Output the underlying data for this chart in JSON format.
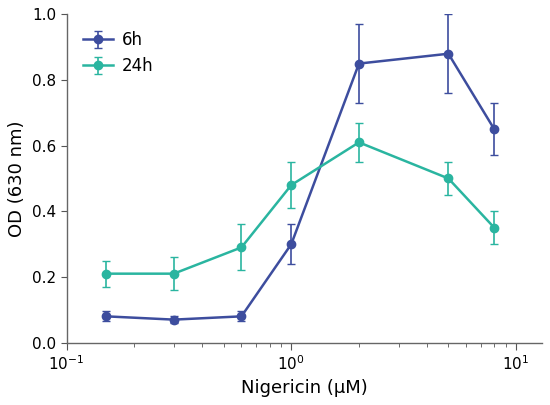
{
  "series_6h": {
    "label": "6h",
    "y": [
      0.08,
      0.07,
      0.08,
      0.3,
      0.85,
      0.88,
      0.65
    ],
    "yerr": [
      0.015,
      0.01,
      0.015,
      0.06,
      0.12,
      0.12,
      0.08
    ],
    "color": "#3d4d9e",
    "x": [
      0.15,
      0.3,
      0.6,
      1.0,
      2.0,
      5.0,
      8.0
    ]
  },
  "series_24h": {
    "label": "24h",
    "y": [
      0.21,
      0.21,
      0.29,
      0.48,
      0.61,
      0.5,
      0.35
    ],
    "yerr": [
      0.04,
      0.05,
      0.07,
      0.07,
      0.06,
      0.05,
      0.05
    ],
    "color": "#2ab5a0",
    "x": [
      0.15,
      0.3,
      0.6,
      1.0,
      2.0,
      5.0,
      8.0
    ]
  },
  "xlabel": "Nigericin (μM)",
  "ylabel": "OD (630 nm)",
  "xlim": [
    0.1,
    13
  ],
  "ylim": [
    0.0,
    1.0
  ],
  "yticks": [
    0.0,
    0.2,
    0.4,
    0.6,
    0.8,
    1.0
  ],
  "legend_loc": "upper left",
  "marker": "o",
  "markersize": 6,
  "linewidth": 1.8,
  "capsize": 3,
  "elinewidth": 1.2,
  "background_color": "#ffffff"
}
